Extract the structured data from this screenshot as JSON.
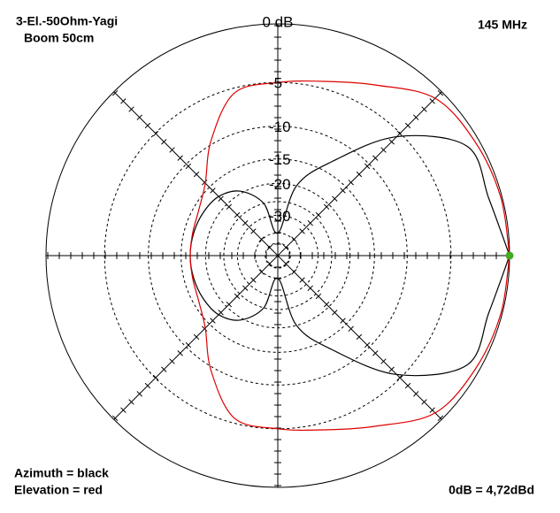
{
  "chart_data": {
    "type": "polar",
    "title": "3-El.-50Ohm-Yagi",
    "subtitle": "Boom 50cm",
    "frequency": "145 MHz",
    "reference": "0dB = 4,72dBd",
    "legend": [
      "Azimuth = black",
      "Elevation = red"
    ],
    "rscale": "arrl-log",
    "theta": [
      0,
      15,
      30,
      45,
      60,
      75,
      90,
      105,
      120,
      135,
      150,
      165,
      180,
      195,
      210,
      225,
      240,
      255,
      270,
      285,
      300,
      315,
      330,
      345,
      360
    ],
    "rticks": [
      {
        "value": 0,
        "label": "0 dB"
      },
      -5,
      -10,
      -15,
      -20,
      -30
    ],
    "rminorticks": [
      -25,
      -40,
      -50
    ],
    "marker_color": "#44aa22",
    "series": [
      {
        "name": "Azimuth",
        "color": "#000000",
        "values": [
          0,
          -1,
          -1,
          -5.5,
          -13,
          -20,
          -40,
          -25,
          -19.5,
          -17.5,
          -17,
          -16.8,
          -16.7,
          -16.8,
          -17,
          -17.5,
          -19.5,
          -25,
          -40,
          -20,
          -13,
          -5.5,
          -1,
          -1,
          0
        ]
      },
      {
        "name": "Elevation",
        "color": "#dd0000",
        "values": [
          0,
          -0.1,
          -0.3,
          -0.7,
          -2.8,
          -4.3,
          -5,
          -5.5,
          -9.5,
          -14,
          -16,
          -16.6,
          -16.7,
          -16.6,
          -16,
          -14,
          -9.5,
          -5.5,
          -5,
          -4.3,
          -2.8,
          -0.7,
          -0.3,
          -0.1,
          0
        ]
      }
    ]
  }
}
